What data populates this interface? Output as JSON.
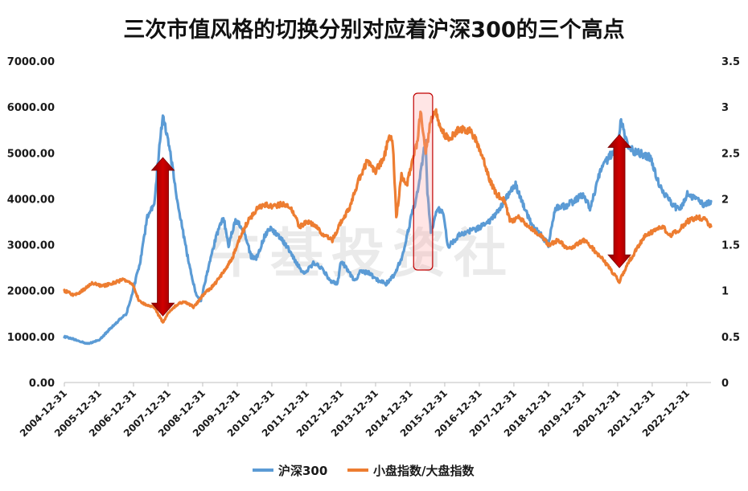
{
  "chart_data": {
    "type": "line",
    "title": "三次市值风格的切换分别对应着沪深300的三个高点",
    "watermark": "牛基投资社",
    "y_left": {
      "range": [
        0,
        7000
      ],
      "ticks": [
        "0.00",
        "1000.00",
        "2000.00",
        "3000.00",
        "4000.00",
        "5000.00",
        "6000.00",
        "7000.00"
      ]
    },
    "y_right": {
      "range": [
        0,
        3.5
      ],
      "ticks": [
        "0",
        "0.5",
        "1",
        "1.5",
        "2",
        "2.5",
        "3",
        "3.5"
      ]
    },
    "x_labels": [
      "2004-12-31",
      "2005-12-31",
      "2006-12-31",
      "2007-12-31",
      "2008-12-31",
      "2009-12-31",
      "2010-12-31",
      "2011-12-31",
      "2012-12-31",
      "2013-12-31",
      "2014-12-31",
      "2015-12-31",
      "2016-12-31",
      "2017-12-31",
      "2018-12-31",
      "2019-12-31",
      "2020-12-31",
      "2021-12-31",
      "2022-12-31"
    ],
    "x_range": [
      2005.0,
      2023.7
    ],
    "series": [
      {
        "name": "沪深300",
        "axis": "left",
        "color": "#5b9bd5",
        "points": [
          [
            2005.0,
            1000
          ],
          [
            2005.3,
            940
          ],
          [
            2005.5,
            880
          ],
          [
            2005.7,
            850
          ],
          [
            2006.0,
            920
          ],
          [
            2006.3,
            1150
          ],
          [
            2006.5,
            1300
          ],
          [
            2006.8,
            1500
          ],
          [
            2007.0,
            2050
          ],
          [
            2007.2,
            2650
          ],
          [
            2007.4,
            3600
          ],
          [
            2007.6,
            3900
          ],
          [
            2007.8,
            5500
          ],
          [
            2007.85,
            5800
          ],
          [
            2008.0,
            5300
          ],
          [
            2008.2,
            4300
          ],
          [
            2008.4,
            3400
          ],
          [
            2008.6,
            2600
          ],
          [
            2008.8,
            1950
          ],
          [
            2008.95,
            1800
          ],
          [
            2009.2,
            2600
          ],
          [
            2009.4,
            3200
          ],
          [
            2009.6,
            3600
          ],
          [
            2009.75,
            3000
          ],
          [
            2009.95,
            3550
          ],
          [
            2010.2,
            3300
          ],
          [
            2010.4,
            2750
          ],
          [
            2010.55,
            2700
          ],
          [
            2010.8,
            3200
          ],
          [
            2010.95,
            3350
          ],
          [
            2011.2,
            3200
          ],
          [
            2011.4,
            3000
          ],
          [
            2011.6,
            2750
          ],
          [
            2011.8,
            2500
          ],
          [
            2011.95,
            2350
          ],
          [
            2012.2,
            2600
          ],
          [
            2012.45,
            2500
          ],
          [
            2012.7,
            2200
          ],
          [
            2012.9,
            2150
          ],
          [
            2013.0,
            2650
          ],
          [
            2013.15,
            2500
          ],
          [
            2013.4,
            2200
          ],
          [
            2013.55,
            2400
          ],
          [
            2013.8,
            2400
          ],
          [
            2014.0,
            2250
          ],
          [
            2014.3,
            2150
          ],
          [
            2014.55,
            2350
          ],
          [
            2014.8,
            2800
          ],
          [
            2015.0,
            3500
          ],
          [
            2015.2,
            4100
          ],
          [
            2015.45,
            5300
          ],
          [
            2015.5,
            4100
          ],
          [
            2015.6,
            3300
          ],
          [
            2015.8,
            3800
          ],
          [
            2015.95,
            3700
          ],
          [
            2016.1,
            2950
          ],
          [
            2016.4,
            3200
          ],
          [
            2016.7,
            3300
          ],
          [
            2016.95,
            3350
          ],
          [
            2017.3,
            3500
          ],
          [
            2017.6,
            3800
          ],
          [
            2017.85,
            4100
          ],
          [
            2018.05,
            4300
          ],
          [
            2018.3,
            3800
          ],
          [
            2018.55,
            3400
          ],
          [
            2018.8,
            3200
          ],
          [
            2019.0,
            3000
          ],
          [
            2019.2,
            3800
          ],
          [
            2019.5,
            3850
          ],
          [
            2019.75,
            3950
          ],
          [
            2020.0,
            4100
          ],
          [
            2020.2,
            3800
          ],
          [
            2020.5,
            4600
          ],
          [
            2020.75,
            4900
          ],
          [
            2021.0,
            5200
          ],
          [
            2021.1,
            5700
          ],
          [
            2021.3,
            5100
          ],
          [
            2021.6,
            5000
          ],
          [
            2021.95,
            4900
          ],
          [
            2022.2,
            4300
          ],
          [
            2022.45,
            4000
          ],
          [
            2022.7,
            3800
          ],
          [
            2022.85,
            3800
          ],
          [
            2023.0,
            4100
          ],
          [
            2023.3,
            4000
          ],
          [
            2023.5,
            3850
          ],
          [
            2023.7,
            3950
          ]
        ]
      },
      {
        "name": "小盘指数/大盘指数",
        "axis": "right",
        "color": "#ed7d31",
        "points": [
          [
            2005.0,
            1.0
          ],
          [
            2005.3,
            0.95
          ],
          [
            2005.6,
            1.02
          ],
          [
            2005.8,
            1.08
          ],
          [
            2006.1,
            1.05
          ],
          [
            2006.4,
            1.08
          ],
          [
            2006.7,
            1.12
          ],
          [
            2006.95,
            1.08
          ],
          [
            2007.15,
            0.9
          ],
          [
            2007.35,
            0.85
          ],
          [
            2007.6,
            0.82
          ],
          [
            2007.85,
            0.65
          ],
          [
            2008.0,
            0.75
          ],
          [
            2008.25,
            0.85
          ],
          [
            2008.5,
            0.88
          ],
          [
            2008.75,
            0.82
          ],
          [
            2009.0,
            0.95
          ],
          [
            2009.3,
            1.05
          ],
          [
            2009.6,
            1.2
          ],
          [
            2009.85,
            1.35
          ],
          [
            2010.1,
            1.6
          ],
          [
            2010.3,
            1.75
          ],
          [
            2010.6,
            1.9
          ],
          [
            2010.85,
            1.93
          ],
          [
            2011.1,
            1.92
          ],
          [
            2011.35,
            1.95
          ],
          [
            2011.55,
            1.9
          ],
          [
            2011.8,
            1.7
          ],
          [
            2012.05,
            1.75
          ],
          [
            2012.3,
            1.7
          ],
          [
            2012.5,
            1.6
          ],
          [
            2012.75,
            1.55
          ],
          [
            2013.0,
            1.75
          ],
          [
            2013.25,
            1.9
          ],
          [
            2013.5,
            2.2
          ],
          [
            2013.75,
            2.4
          ],
          [
            2014.0,
            2.3
          ],
          [
            2014.25,
            2.45
          ],
          [
            2014.4,
            2.7
          ],
          [
            2014.5,
            2.6
          ],
          [
            2014.6,
            1.8
          ],
          [
            2014.75,
            2.25
          ],
          [
            2014.9,
            2.15
          ],
          [
            2015.05,
            2.4
          ],
          [
            2015.2,
            2.6
          ],
          [
            2015.3,
            2.95
          ],
          [
            2015.45,
            2.5
          ],
          [
            2015.6,
            2.85
          ],
          [
            2015.75,
            2.95
          ],
          [
            2015.9,
            2.75
          ],
          [
            2016.1,
            2.65
          ],
          [
            2016.4,
            2.75
          ],
          [
            2016.7,
            2.75
          ],
          [
            2016.9,
            2.65
          ],
          [
            2017.1,
            2.45
          ],
          [
            2017.3,
            2.2
          ],
          [
            2017.5,
            2.05
          ],
          [
            2017.7,
            2.0
          ],
          [
            2017.9,
            1.75
          ],
          [
            2018.15,
            1.8
          ],
          [
            2018.4,
            1.7
          ],
          [
            2018.6,
            1.65
          ],
          [
            2018.8,
            1.6
          ],
          [
            2019.0,
            1.5
          ],
          [
            2019.3,
            1.55
          ],
          [
            2019.55,
            1.45
          ],
          [
            2019.8,
            1.5
          ],
          [
            2020.05,
            1.55
          ],
          [
            2020.3,
            1.45
          ],
          [
            2020.55,
            1.35
          ],
          [
            2020.75,
            1.25
          ],
          [
            2020.95,
            1.15
          ],
          [
            2021.05,
            1.1
          ],
          [
            2021.3,
            1.3
          ],
          [
            2021.55,
            1.45
          ],
          [
            2021.8,
            1.6
          ],
          [
            2022.05,
            1.65
          ],
          [
            2022.3,
            1.7
          ],
          [
            2022.5,
            1.6
          ],
          [
            2022.75,
            1.65
          ],
          [
            2023.0,
            1.75
          ],
          [
            2023.3,
            1.8
          ],
          [
            2023.5,
            1.78
          ],
          [
            2023.7,
            1.7
          ]
        ]
      }
    ],
    "annotations": [
      {
        "type": "double-arrow",
        "x": 2007.85,
        "y_top": 4900,
        "y_bottom": 1450,
        "color": "#c00000"
      },
      {
        "type": "double-arrow",
        "x": 2021.05,
        "y_top": 5400,
        "y_bottom": 2500,
        "color": "#c00000"
      },
      {
        "type": "highlight-box",
        "x_from": 2015.1,
        "x_to": 2015.65,
        "y_from": 2450,
        "y_to": 6300,
        "color": "#c00000"
      }
    ],
    "legend": {
      "placement": "bottom-center"
    }
  }
}
